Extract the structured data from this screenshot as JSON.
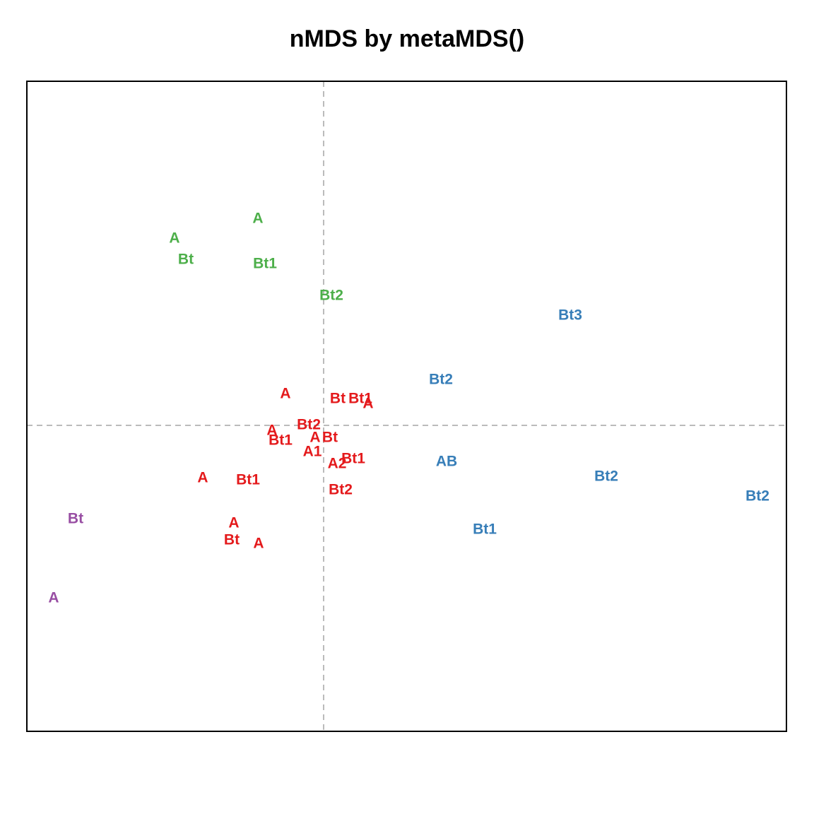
{
  "chart_data": {
    "type": "scatter",
    "title": "nMDS by metaMDS()",
    "xlabel": "",
    "ylabel": "",
    "axes_shown": false,
    "reference_lines": {
      "x": 0,
      "y": 0,
      "style": "dashed",
      "color": "#bbbbbb"
    },
    "xlim": [
      -0.42,
      0.655
    ],
    "ylim": [
      -0.433,
      0.487
    ],
    "series": [
      {
        "color": "#e41a1c",
        "points": [
          {
            "label": "A",
            "x": -0.054,
            "y": 0.045
          },
          {
            "label": "Bt",
            "x": 0.02,
            "y": 0.038
          },
          {
            "label": "Bt1",
            "x": 0.052,
            "y": 0.038
          },
          {
            "label": "A",
            "x": 0.063,
            "y": 0.031
          },
          {
            "label": "Bt2",
            "x": -0.021,
            "y": 0.001
          },
          {
            "label": "A",
            "x": -0.073,
            "y": -0.007
          },
          {
            "label": "A",
            "x": -0.012,
            "y": -0.017
          },
          {
            "label": "Bt",
            "x": 0.009,
            "y": -0.017
          },
          {
            "label": "Bt1",
            "x": -0.061,
            "y": -0.021
          },
          {
            "label": "A1",
            "x": -0.016,
            "y": -0.037
          },
          {
            "label": "A2",
            "x": 0.019,
            "y": -0.054
          },
          {
            "label": "Bt1",
            "x": 0.042,
            "y": -0.047
          },
          {
            "label": "A",
            "x": -0.171,
            "y": -0.074
          },
          {
            "label": "Bt1",
            "x": -0.107,
            "y": -0.077
          },
          {
            "label": "Bt2",
            "x": 0.024,
            "y": -0.091
          },
          {
            "label": "A",
            "x": -0.127,
            "y": -0.138
          },
          {
            "label": "Bt",
            "x": -0.13,
            "y": -0.162
          },
          {
            "label": "A",
            "x": -0.092,
            "y": -0.167
          }
        ]
      },
      {
        "color": "#4daf4a",
        "points": [
          {
            "label": "A",
            "x": -0.093,
            "y": 0.293
          },
          {
            "label": "A",
            "x": -0.211,
            "y": 0.265
          },
          {
            "label": "Bt",
            "x": -0.195,
            "y": 0.235
          },
          {
            "label": "Bt1",
            "x": -0.083,
            "y": 0.229
          },
          {
            "label": "Bt2",
            "x": 0.011,
            "y": 0.184
          }
        ]
      },
      {
        "color": "#377eb8",
        "points": [
          {
            "label": "Bt3",
            "x": 0.349,
            "y": 0.156
          },
          {
            "label": "Bt2",
            "x": 0.166,
            "y": 0.065
          },
          {
            "label": "AB",
            "x": 0.174,
            "y": -0.051
          },
          {
            "label": "Bt2",
            "x": 0.4,
            "y": -0.072
          },
          {
            "label": "Bt2",
            "x": 0.614,
            "y": -0.1
          },
          {
            "label": "Bt1",
            "x": 0.228,
            "y": -0.147
          }
        ]
      },
      {
        "color": "#984ea3",
        "points": [
          {
            "label": "Bt",
            "x": -0.351,
            "y": -0.132
          },
          {
            "label": "A",
            "x": -0.382,
            "y": -0.244
          }
        ]
      }
    ]
  }
}
